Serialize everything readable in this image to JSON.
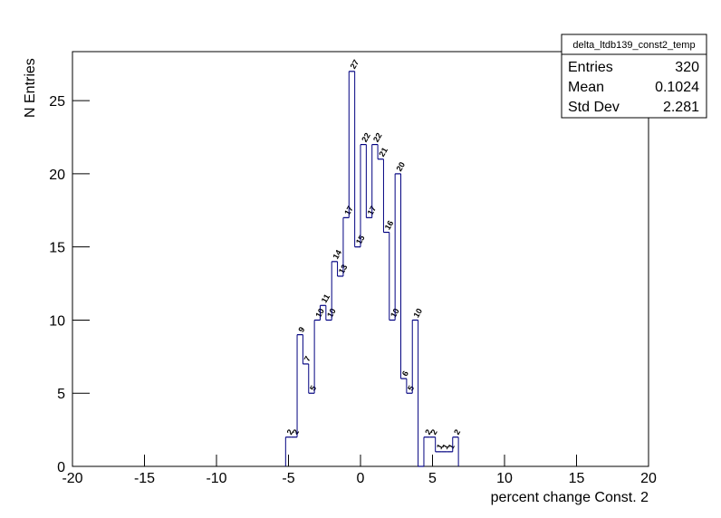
{
  "chart_data": {
    "type": "histogram",
    "x_label": "percent change Const. 2",
    "y_label": "N Entries",
    "bins": [
      -5.2,
      -4.8,
      -4.4,
      -4.0,
      -3.6,
      -3.2,
      -2.8,
      -2.4,
      -2.0,
      -1.6,
      -1.2,
      -0.8,
      -0.4,
      0.0,
      0.4,
      0.8,
      1.2,
      1.6,
      2.0,
      2.4,
      2.8,
      3.2,
      3.6,
      4.0,
      4.4,
      4.8,
      5.2,
      5.6,
      6.0,
      6.4,
      6.8
    ],
    "values": [
      2,
      2,
      9,
      7,
      5,
      10,
      11,
      10,
      14,
      13,
      17,
      27,
      15,
      22,
      17,
      22,
      21,
      16,
      10,
      20,
      6,
      5,
      10,
      0,
      2,
      2,
      1,
      1,
      1,
      2
    ],
    "color": "#000080",
    "xlim": [
      -20,
      20
    ],
    "xticks": [
      -20,
      -15,
      -10,
      -5,
      0,
      5,
      10,
      15,
      20
    ],
    "ylim": [
      0,
      28.35
    ],
    "yticks": [
      0,
      5,
      10,
      15,
      20,
      25
    ],
    "stats": {
      "title": "delta_ltdb139_const2_temp",
      "rows": [
        {
          "label": "Entries",
          "value": 320
        },
        {
          "label": "Mean",
          "value": 0.1024
        },
        {
          "label": "Std Dev",
          "value": 2.281
        }
      ]
    }
  }
}
